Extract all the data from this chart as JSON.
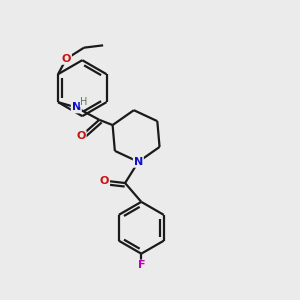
{
  "background_color": "#ebebeb",
  "bond_color": "#1a1a1a",
  "atom_colors": {
    "N": "#1010cc",
    "O": "#cc1010",
    "F": "#bb00bb",
    "H": "#557766",
    "C": "#1a1a1a"
  },
  "figsize": [
    3.0,
    3.0
  ],
  "dpi": 100
}
